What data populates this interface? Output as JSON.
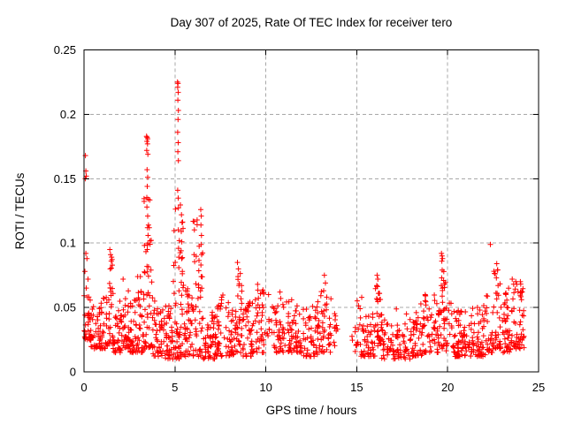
{
  "figure": {
    "title": "Day 307 of 2025, Rate Of TEC Index for receiver tero"
  },
  "colors": {
    "marker": "#ff0000",
    "grid": "#a8a8a8",
    "border": "#000000",
    "text": "#000000",
    "background": "#ffffff"
  },
  "chart_data": {
    "type": "scatter",
    "title": "Day 307 of 2025, Rate Of TEC Index for receiver tero",
    "xlabel": "GPS time / hours",
    "ylabel": "ROTI / TECUs",
    "xlim": [
      0,
      25
    ],
    "ylim": [
      0,
      0.25
    ],
    "xticks": [
      0,
      5,
      10,
      15,
      20,
      25
    ],
    "xtick_labels": [
      "0",
      "5",
      "10",
      "15",
      "20",
      "25"
    ],
    "yticks": [
      0,
      0.05,
      0.1,
      0.15,
      0.2,
      0.25
    ],
    "ytick_labels": [
      "0",
      "0.05",
      "0.1",
      "0.15",
      "0.2",
      "0.25"
    ],
    "grid": true,
    "legend": "none",
    "marker": "plus",
    "marker_color": "#ff0000",
    "description": "Dense red scatter of ROTI values vs GPS time; noise band ~0.01-0.06 TECU with spikes near 0h (0.17), 3.5h (0.183), 5.2h (0.225 max), 6.4h (0.126), 8.5h (0.085), 16.1h (0.075), 19.7h (0.092), 22.4h (0.099), data gap ~13.9-14.7h, data ends ~24.2h",
    "spike_points": [
      [
        0.08,
        0.168
      ],
      [
        0.1,
        0.156
      ],
      [
        0.12,
        0.152
      ],
      [
        0.07,
        0.15
      ],
      [
        0.1,
        0.092
      ],
      [
        0.16,
        0.088
      ],
      [
        0.05,
        0.078
      ],
      [
        0.22,
        0.072
      ],
      [
        1.42,
        0.095
      ],
      [
        1.46,
        0.091
      ],
      [
        1.5,
        0.086
      ],
      [
        1.44,
        0.08
      ],
      [
        2.15,
        0.072
      ],
      [
        2.95,
        0.074
      ],
      [
        3.44,
        0.183
      ],
      [
        3.47,
        0.182
      ],
      [
        3.5,
        0.181
      ],
      [
        3.46,
        0.179
      ],
      [
        3.49,
        0.177
      ],
      [
        3.45,
        0.172
      ],
      [
        3.51,
        0.169
      ],
      [
        3.47,
        0.157
      ],
      [
        3.5,
        0.151
      ],
      [
        3.48,
        0.144
      ],
      [
        3.53,
        0.134
      ],
      [
        3.46,
        0.128
      ],
      [
        3.5,
        0.121
      ],
      [
        3.49,
        0.112
      ],
      [
        3.52,
        0.106
      ],
      [
        3.51,
        0.1
      ],
      [
        3.48,
        0.095
      ],
      [
        5.14,
        0.225
      ],
      [
        5.17,
        0.224
      ],
      [
        5.15,
        0.221
      ],
      [
        5.18,
        0.217
      ],
      [
        5.16,
        0.211
      ],
      [
        5.19,
        0.203
      ],
      [
        5.17,
        0.196
      ],
      [
        5.15,
        0.186
      ],
      [
        5.18,
        0.178
      ],
      [
        5.16,
        0.171
      ],
      [
        5.19,
        0.164
      ],
      [
        5.15,
        0.141
      ],
      [
        5.18,
        0.135
      ],
      [
        5.36,
        0.122
      ],
      [
        5.39,
        0.116
      ],
      [
        5.35,
        0.109
      ],
      [
        5.38,
        0.101
      ],
      [
        5.34,
        0.094
      ],
      [
        5.37,
        0.088
      ],
      [
        6.42,
        0.126
      ],
      [
        6.45,
        0.121
      ],
      [
        6.43,
        0.114
      ],
      [
        6.46,
        0.106
      ],
      [
        6.44,
        0.099
      ],
      [
        6.47,
        0.091
      ],
      [
        6.43,
        0.083
      ],
      [
        6.45,
        0.074
      ],
      [
        6.48,
        0.065
      ],
      [
        6.41,
        0.058
      ],
      [
        8.44,
        0.085
      ],
      [
        8.49,
        0.08
      ],
      [
        8.47,
        0.074
      ],
      [
        8.52,
        0.067
      ],
      [
        8.46,
        0.059
      ],
      [
        9.55,
        0.068
      ],
      [
        10.15,
        0.06
      ],
      [
        10.78,
        0.062
      ],
      [
        11.42,
        0.056
      ],
      [
        13.22,
        0.075
      ],
      [
        13.28,
        0.069
      ],
      [
        13.18,
        0.063
      ],
      [
        13.35,
        0.058
      ],
      [
        16.12,
        0.075
      ],
      [
        16.16,
        0.072
      ],
      [
        16.1,
        0.067
      ],
      [
        16.19,
        0.061
      ],
      [
        16.14,
        0.056
      ],
      [
        19.66,
        0.092
      ],
      [
        19.69,
        0.09
      ],
      [
        19.72,
        0.088
      ],
      [
        19.68,
        0.086
      ],
      [
        19.7,
        0.079
      ],
      [
        19.67,
        0.073
      ],
      [
        19.72,
        0.065
      ],
      [
        22.35,
        0.099
      ],
      [
        22.7,
        0.084
      ],
      [
        22.74,
        0.079
      ],
      [
        22.68,
        0.073
      ],
      [
        22.77,
        0.067
      ],
      [
        22.72,
        0.061
      ],
      [
        23.35,
        0.065
      ],
      [
        23.55,
        0.072
      ],
      [
        23.8,
        0.068
      ],
      [
        24.0,
        0.07
      ],
      [
        24.1,
        0.062
      ]
    ],
    "band_segments": [
      [
        0.0,
        0.35,
        30,
        0.025,
        0.068
      ],
      [
        0.35,
        0.9,
        40,
        0.018,
        0.052
      ],
      [
        0.9,
        1.3,
        28,
        0.018,
        0.06
      ],
      [
        1.3,
        1.6,
        28,
        0.022,
        0.09
      ],
      [
        1.6,
        2.1,
        40,
        0.015,
        0.055
      ],
      [
        2.1,
        2.45,
        28,
        0.018,
        0.07
      ],
      [
        2.45,
        2.95,
        40,
        0.015,
        0.06
      ],
      [
        2.95,
        3.3,
        28,
        0.015,
        0.074
      ],
      [
        3.3,
        3.75,
        45,
        0.018,
        0.145
      ],
      [
        3.75,
        4.3,
        45,
        0.012,
        0.058
      ],
      [
        4.3,
        4.9,
        45,
        0.01,
        0.052
      ],
      [
        4.9,
        5.45,
        60,
        0.01,
        0.13
      ],
      [
        5.45,
        5.95,
        40,
        0.012,
        0.068
      ],
      [
        5.95,
        6.55,
        45,
        0.012,
        0.12
      ],
      [
        6.55,
        7.2,
        45,
        0.01,
        0.048
      ],
      [
        7.2,
        7.8,
        40,
        0.012,
        0.06
      ],
      [
        7.8,
        8.3,
        35,
        0.012,
        0.055
      ],
      [
        8.3,
        8.75,
        35,
        0.015,
        0.082
      ],
      [
        8.75,
        9.3,
        40,
        0.012,
        0.055
      ],
      [
        9.3,
        9.9,
        40,
        0.015,
        0.066
      ],
      [
        9.9,
        10.45,
        12,
        0.028,
        0.058
      ],
      [
        10.45,
        11.35,
        55,
        0.015,
        0.058
      ],
      [
        11.35,
        12.0,
        40,
        0.015,
        0.052
      ],
      [
        12.0,
        12.9,
        55,
        0.012,
        0.055
      ],
      [
        12.9,
        13.6,
        40,
        0.015,
        0.064
      ],
      [
        13.6,
        13.95,
        10,
        0.02,
        0.046
      ],
      [
        14.7,
        15.6,
        38,
        0.012,
        0.058
      ],
      [
        15.6,
        16.0,
        28,
        0.012,
        0.05
      ],
      [
        16.0,
        16.35,
        28,
        0.02,
        0.072
      ],
      [
        16.35,
        17.1,
        40,
        0.01,
        0.045
      ],
      [
        17.1,
        18.0,
        50,
        0.01,
        0.05
      ],
      [
        18.0,
        18.7,
        45,
        0.012,
        0.058
      ],
      [
        18.7,
        19.5,
        50,
        0.015,
        0.06
      ],
      [
        19.5,
        19.9,
        32,
        0.018,
        0.078
      ],
      [
        19.9,
        20.6,
        45,
        0.012,
        0.055
      ],
      [
        20.6,
        21.4,
        50,
        0.012,
        0.05
      ],
      [
        21.4,
        22.1,
        45,
        0.012,
        0.052
      ],
      [
        22.1,
        22.5,
        25,
        0.015,
        0.06
      ],
      [
        22.5,
        23.0,
        32,
        0.018,
        0.08
      ],
      [
        23.0,
        23.6,
        45,
        0.015,
        0.066
      ],
      [
        23.6,
        24.2,
        50,
        0.018,
        0.074
      ]
    ],
    "seed": 13
  }
}
